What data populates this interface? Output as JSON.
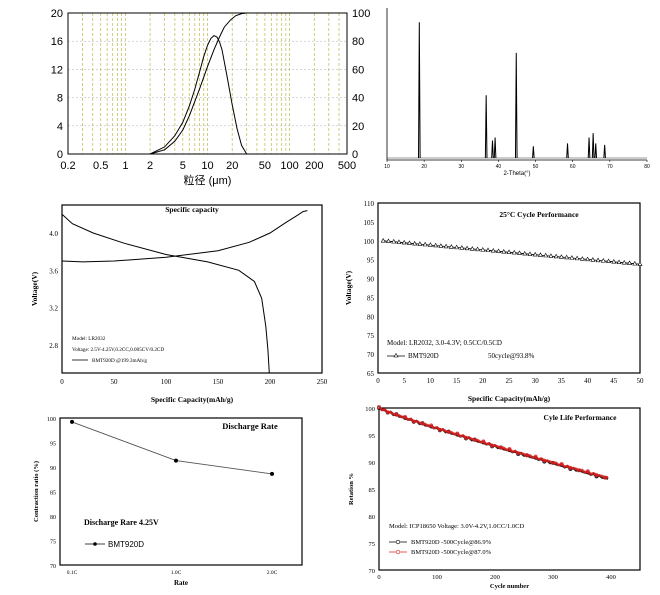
{
  "chart_data": [
    {
      "type": "line",
      "xlabel": "粒径 (μm)",
      "xscale": "log",
      "xlim": [
        0.2,
        500
      ],
      "xticks": [
        "0.2",
        "0.5",
        "1",
        "2",
        "5",
        "10",
        "20",
        "50",
        "100",
        "200",
        "500"
      ],
      "ylim_left": [
        0,
        20
      ],
      "yticks_left": [
        "0",
        "4",
        "8",
        "12",
        "16",
        "20"
      ],
      "ylim_right": [
        0,
        100
      ],
      "yticks_right": [
        "0",
        "20",
        "40",
        "60",
        "80",
        "100"
      ],
      "grid": true,
      "series": [
        {
          "axis": "left",
          "x": [
            2,
            3,
            4,
            5,
            6,
            7,
            8,
            9,
            10,
            11,
            12,
            13,
            14,
            15,
            17,
            20,
            23,
            26,
            30
          ],
          "y": [
            0,
            1,
            2.6,
            4.5,
            6.8,
            9.2,
            11.6,
            13.8,
            15.4,
            16.4,
            16.8,
            16.6,
            15.9,
            14.8,
            11.5,
            7,
            3.5,
            1.2,
            0
          ]
        },
        {
          "axis": "right",
          "x": [
            2,
            3,
            4,
            5,
            6,
            8,
            10,
            12,
            14,
            16,
            19,
            22,
            26,
            30
          ],
          "y": [
            0,
            3,
            9,
            17,
            27,
            46,
            62,
            74,
            83,
            90,
            95,
            98,
            99.6,
            100
          ]
        }
      ]
    },
    {
      "type": "line",
      "xlabel": "2-Theta(°)",
      "xlim": [
        10,
        80
      ],
      "xticks": [
        "10",
        "20",
        "30",
        "40",
        "50",
        "60",
        "70",
        "80"
      ],
      "peaks": [
        {
          "x": 18.7,
          "h": 0.93
        },
        {
          "x": 36.7,
          "h": 0.43
        },
        {
          "x": 38.4,
          "h": 0.12
        },
        {
          "x": 39.1,
          "h": 0.14
        },
        {
          "x": 44.8,
          "h": 0.72
        },
        {
          "x": 49.4,
          "h": 0.08
        },
        {
          "x": 58.6,
          "h": 0.1
        },
        {
          "x": 64.4,
          "h": 0.14
        },
        {
          "x": 65.5,
          "h": 0.17
        },
        {
          "x": 66.2,
          "h": 0.1
        },
        {
          "x": 68.6,
          "h": 0.09
        }
      ]
    },
    {
      "type": "line",
      "title": "Specific capacity",
      "xlabel": "Specific Capacity(mAh/g)",
      "ylabel": "Voltage(V)",
      "xlim": [
        0,
        250
      ],
      "ylim": [
        2.5,
        4.3
      ],
      "xticks": [
        "0",
        "50",
        "100",
        "150",
        "200",
        "250"
      ],
      "yticks": [
        "2.8",
        "3.2",
        "3.6",
        "4.0"
      ],
      "legend_lines": [
        "Model: LR2032",
        "Voltage: 2.5V-4.25V,0.2CC,0.005CV/0.2CD",
        "BMT920D   @199.3mAh/g"
      ],
      "series": [
        {
          "x": [
            0,
            20,
            50,
            100,
            150,
            180,
            200,
            215,
            225,
            232,
            236
          ],
          "y": [
            3.7,
            3.69,
            3.7,
            3.74,
            3.81,
            3.9,
            4.0,
            4.11,
            4.18,
            4.23,
            4.24
          ]
        },
        {
          "x": [
            0,
            10,
            30,
            60,
            100,
            140,
            170,
            185,
            192,
            196,
            198,
            199.3
          ],
          "y": [
            4.2,
            4.1,
            4.0,
            3.89,
            3.77,
            3.69,
            3.6,
            3.48,
            3.3,
            3.0,
            2.75,
            2.5
          ]
        }
      ]
    },
    {
      "type": "line",
      "title": "25°C Cycle Performance",
      "xlabel": "Specific Capacity(mAh/g)",
      "ylabel": "Voltage(V)",
      "xlim": [
        0,
        50
      ],
      "ylim": [
        65,
        110
      ],
      "xticks": [
        "0",
        "5",
        "10",
        "15",
        "20",
        "25",
        "30",
        "35",
        "40",
        "45",
        "50"
      ],
      "yticks": [
        "65",
        "70",
        "75",
        "80",
        "85",
        "90",
        "95",
        "100",
        "105",
        "110"
      ],
      "legend_lines": [
        "Model: LR2032, 3.0-4.3V; 0.5CC/0.5CD",
        "BMT920D",
        "50cycle@93.8%"
      ],
      "series": [
        {
          "name": "BMT920D",
          "x_start": 1,
          "x_end": 50,
          "y_start": 100,
          "y_end": 93.8
        }
      ]
    },
    {
      "type": "line",
      "title": "Discharge Rate",
      "xlabel": "Rate",
      "ylabel": "Contraction ratio (%)",
      "categories": [
        "0.1C",
        "1.0C",
        "2.0C"
      ],
      "ylim": [
        70,
        100
      ],
      "yticks": [
        "70",
        "75",
        "80",
        "85",
        "90",
        "95",
        "100"
      ],
      "legend_lines": [
        "Discharge Rare 4.25V",
        "BMT920D"
      ],
      "series": [
        {
          "name": "BMT920D",
          "values": [
            99.2,
            91.3,
            88.6
          ]
        }
      ]
    },
    {
      "type": "line",
      "title": "Cyle Life Performance",
      "xlabel": "Cycle number",
      "ylabel": "Retation %",
      "xlim": [
        0,
        450
      ],
      "ylim": [
        70,
        100
      ],
      "xticks": [
        "0",
        "100",
        "200",
        "300",
        "400"
      ],
      "yticks": [
        "70",
        "75",
        "80",
        "85",
        "90",
        "95",
        "100"
      ],
      "legend_lines": [
        "Model: ICP18650 Voltage: 3.0V-4.2V,1.0CC/1.0CD",
        "BMT920D -500Cycle@86.9%",
        "BMT920D -500Cycle@87.0%"
      ],
      "series": [
        {
          "name": "BMT920D -500Cycle@86.9%",
          "color": "#000000",
          "end": 86.9
        },
        {
          "name": "BMT920D -500Cycle@87.0%",
          "color": "#e02020",
          "end": 87.0
        }
      ]
    }
  ]
}
